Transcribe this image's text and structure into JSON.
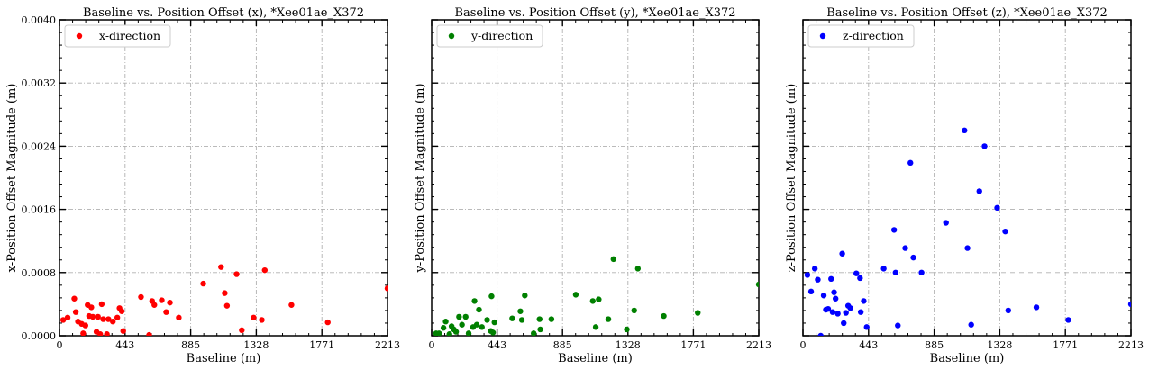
{
  "chart_data": [
    {
      "type": "scatter",
      "title": "Baseline vs. Position Offset (x), *Xee01ae_X372",
      "xlabel": "Baseline (m)",
      "ylabel": "x-Position Offset Magnitude (m)",
      "xlim": [
        0,
        2213
      ],
      "ylim": [
        0,
        0.004
      ],
      "xticks": [
        "0",
        "443",
        "885",
        "1328",
        "1771",
        "2213"
      ],
      "yticks": [
        "0.0000",
        "0.0008",
        "0.0016",
        "0.0024",
        "0.0032",
        "0.0040"
      ],
      "grid": true,
      "legend_position": "top-left",
      "series": [
        {
          "name": "x-direction",
          "color": "#ff0000",
          "points": [
            [
              25,
              0.0002
            ],
            [
              55,
              0.00023
            ],
            [
              100,
              0.00047
            ],
            [
              110,
              0.0003
            ],
            [
              125,
              0.00018
            ],
            [
              150,
              0.00015
            ],
            [
              160,
              3e-05
            ],
            [
              175,
              0.00013
            ],
            [
              190,
              0.00039
            ],
            [
              200,
              0.00025
            ],
            [
              215,
              0.00036
            ],
            [
              225,
              0.00024
            ],
            [
              250,
              5e-05
            ],
            [
              260,
              0.00024
            ],
            [
              275,
              2e-05
            ],
            [
              285,
              0.0004
            ],
            [
              295,
              0.00021
            ],
            [
              320,
              2e-05
            ],
            [
              330,
              0.00021
            ],
            [
              360,
              0.00018
            ],
            [
              390,
              0.00023
            ],
            [
              405,
              0.00035
            ],
            [
              420,
              0.00031
            ],
            [
              430,
              6e-05
            ],
            [
              550,
              0.00049
            ],
            [
              605,
              1e-05
            ],
            [
              625,
              0.00044
            ],
            [
              640,
              0.00039
            ],
            [
              690,
              0.00045
            ],
            [
              720,
              0.0003
            ],
            [
              745,
              0.00042
            ],
            [
              805,
              0.00023
            ],
            [
              970,
              0.00066
            ],
            [
              1090,
              0.00087
            ],
            [
              1115,
              0.00054
            ],
            [
              1130,
              0.00038
            ],
            [
              1195,
              0.00078
            ],
            [
              1230,
              7e-05
            ],
            [
              1310,
              0.00023
            ],
            [
              1365,
              0.0002
            ],
            [
              1385,
              0.00083
            ],
            [
              1565,
              0.00039
            ],
            [
              1810,
              0.00017
            ],
            [
              2213,
              0.0006
            ]
          ]
        }
      ]
    },
    {
      "type": "scatter",
      "title": "Baseline vs. Position Offset (y), *Xee01ae_X372",
      "xlabel": "Baseline (m)",
      "ylabel": "y-Position Offset Magnitude (m)",
      "xlim": [
        0,
        2213
      ],
      "ylim": [
        0,
        0.004
      ],
      "xticks": [
        "0",
        "443",
        "885",
        "1328",
        "1771",
        "2213"
      ],
      "yticks": [
        "",
        "",
        "",
        "",
        "",
        ""
      ],
      "grid": true,
      "legend_position": "top-left",
      "series": [
        {
          "name": "y-direction",
          "color": "#008000",
          "points": [
            [
              30,
              3e-05
            ],
            [
              50,
              3e-05
            ],
            [
              80,
              0.0001
            ],
            [
              95,
              0.00018
            ],
            [
              120,
              2e-05
            ],
            [
              135,
              0.00012
            ],
            [
              150,
              8e-05
            ],
            [
              165,
              5e-05
            ],
            [
              185,
              0.00024
            ],
            [
              205,
              0.00014
            ],
            [
              230,
              0.00024
            ],
            [
              250,
              3e-05
            ],
            [
              280,
              0.00011
            ],
            [
              290,
              0.00044
            ],
            [
              305,
              0.00014
            ],
            [
              320,
              0.00033
            ],
            [
              340,
              0.00011
            ],
            [
              375,
              0.0002
            ],
            [
              400,
              6e-05
            ],
            [
              405,
              0.0005
            ],
            [
              415,
              4e-05
            ],
            [
              425,
              0.00017
            ],
            [
              545,
              0.00022
            ],
            [
              600,
              0.00031
            ],
            [
              610,
              0.0002
            ],
            [
              630,
              0.00051
            ],
            [
              690,
              3e-05
            ],
            [
              730,
              0.00021
            ],
            [
              735,
              8e-05
            ],
            [
              810,
              0.00021
            ],
            [
              975,
              0.00052
            ],
            [
              1090,
              0.00044
            ],
            [
              1110,
              0.00011
            ],
            [
              1130,
              0.00046
            ],
            [
              1195,
              0.00021
            ],
            [
              1230,
              0.00097
            ],
            [
              1320,
              8e-05
            ],
            [
              1370,
              0.00032
            ],
            [
              1395,
              0.00085
            ],
            [
              1570,
              0.00025
            ],
            [
              1800,
              0.00029
            ],
            [
              2213,
              0.00065
            ]
          ]
        }
      ]
    },
    {
      "type": "scatter",
      "title": "Baseline vs. Position Offset (z), *Xee01ae_X372",
      "xlabel": "Baseline (m)",
      "ylabel": "z-Position Offset Magnitude (m)",
      "xlim": [
        0,
        2213
      ],
      "ylim": [
        0,
        0.004
      ],
      "xticks": [
        "0",
        "443",
        "885",
        "1328",
        "1771",
        "2213"
      ],
      "yticks": [
        "",
        "",
        "",
        "",
        "",
        ""
      ],
      "grid": true,
      "legend_position": "top-left",
      "series": [
        {
          "name": "z-direction",
          "color": "#0000ff",
          "points": [
            [
              30,
              0.00077
            ],
            [
              55,
              0.00056
            ],
            [
              80,
              0.00085
            ],
            [
              100,
              0.00071
            ],
            [
              120,
              0.0
            ],
            [
              140,
              0.00051
            ],
            [
              155,
              0.00033
            ],
            [
              170,
              0.00034
            ],
            [
              190,
              0.00072
            ],
            [
              200,
              0.0003
            ],
            [
              210,
              0.00055
            ],
            [
              220,
              0.00047
            ],
            [
              235,
              0.00028
            ],
            [
              265,
              0.00104
            ],
            [
              275,
              0.00016
            ],
            [
              290,
              0.00029
            ],
            [
              305,
              0.00038
            ],
            [
              320,
              0.00035
            ],
            [
              360,
              0.00079
            ],
            [
              385,
              0.00073
            ],
            [
              390,
              0.0003
            ],
            [
              410,
              0.00044
            ],
            [
              430,
              0.00011
            ],
            [
              545,
              0.00085
            ],
            [
              615,
              0.00134
            ],
            [
              625,
              0.0008
            ],
            [
              640,
              0.00013
            ],
            [
              690,
              0.00111
            ],
            [
              725,
              0.00219
            ],
            [
              745,
              0.00099
            ],
            [
              800,
              0.0008
            ],
            [
              965,
              0.00143
            ],
            [
              1090,
              0.0026
            ],
            [
              1110,
              0.00111
            ],
            [
              1135,
              0.00014
            ],
            [
              1190,
              0.00183
            ],
            [
              1225,
              0.0024
            ],
            [
              1310,
              0.00162
            ],
            [
              1365,
              0.00132
            ],
            [
              1385,
              0.00032
            ],
            [
              1575,
              0.00036
            ],
            [
              1790,
              0.0002
            ],
            [
              2213,
              0.0004
            ]
          ]
        }
      ]
    }
  ]
}
